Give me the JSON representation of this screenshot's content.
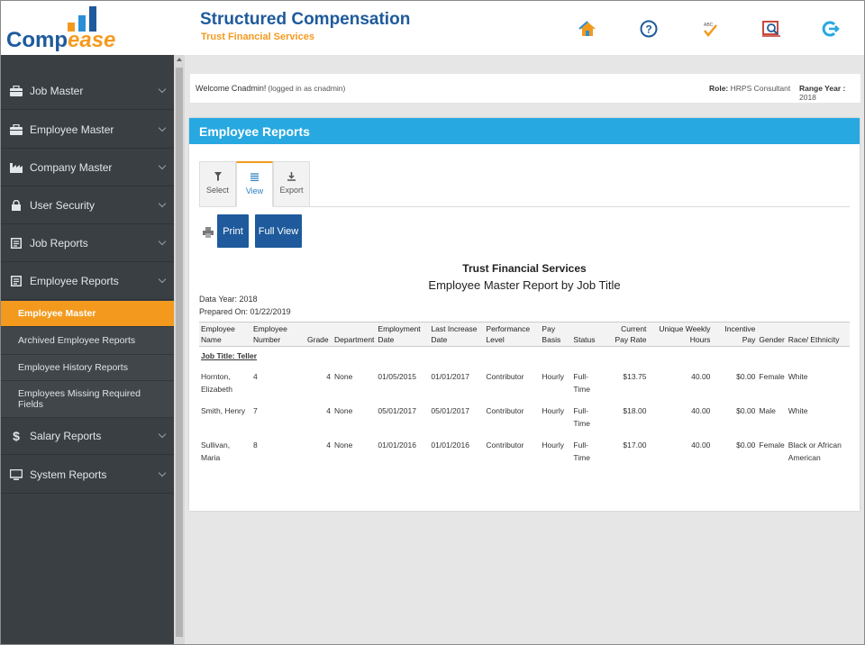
{
  "app": {
    "logo_part1": "Comp",
    "logo_part2": "ease",
    "title": "Structured Compensation",
    "company": "Trust Financial Services"
  },
  "header_icons": [
    "home-icon",
    "help-icon",
    "spellcheck-icon",
    "report-search-icon",
    "logout-icon"
  ],
  "sidebar": {
    "items": [
      {
        "label": "Job Master",
        "icon": "briefcase-icon"
      },
      {
        "label": "Employee Master",
        "icon": "briefcase-icon"
      },
      {
        "label": "Company Master",
        "icon": "factory-icon"
      },
      {
        "label": "User Security",
        "icon": "lock-icon"
      },
      {
        "label": "Job Reports",
        "icon": "report-icon"
      },
      {
        "label": "Employee Reports",
        "icon": "report-icon"
      },
      {
        "label": "Salary Reports",
        "icon": "dollar-icon"
      },
      {
        "label": "System Reports",
        "icon": "monitor-icon"
      }
    ],
    "sub_items": [
      {
        "label": "Employee Master",
        "active": true
      },
      {
        "label": "Archived Employee Reports"
      },
      {
        "label": "Employee History Reports"
      },
      {
        "label": "Employees Missing Required Fields"
      }
    ]
  },
  "welcome": {
    "text": "Welcome Cnadmin!",
    "logged_in": "(logged in as cnadmin)",
    "role_label": "Role:",
    "role_value": "HRPS Consultant",
    "range_label": "Range Year :",
    "range_value": "2018"
  },
  "panel": {
    "title": "Employee Reports",
    "tabs": [
      {
        "label": "Select",
        "icon": "filter-icon"
      },
      {
        "label": "View",
        "icon": "list-icon",
        "active": true
      },
      {
        "label": "Export",
        "icon": "download-icon"
      }
    ],
    "buttons": {
      "print": "Print",
      "full_view": "Full View"
    }
  },
  "report": {
    "company": "Trust Financial Services",
    "title": "Employee Master Report by Job Title",
    "data_year": "Data Year: 2018",
    "prepared_on": "Prepared On: 01/22/2019",
    "columns": [
      "Employee Name",
      "Employee Number",
      "Grade",
      "Department",
      "Employment Date",
      "Last Increase Date",
      "Performance Level",
      "Pay Basis",
      "Status",
      "Current Pay Rate",
      "Unique Weekly Hours",
      "Incentive Pay",
      "Gender",
      "Race/ Ethnicity"
    ],
    "group_label": "Job Title: Teller",
    "rows": [
      {
        "name": "Hornton, Elizabeth",
        "number": "4",
        "grade": "4",
        "department": "None",
        "employment_date": "01/05/2015",
        "last_increase": "01/01/2017",
        "performance": "Contributor",
        "pay_basis": "Hourly",
        "status": "Full-Time",
        "pay_rate": "$13.75",
        "weekly_hours": "40.00",
        "incentive": "$0.00",
        "gender": "Female",
        "race": "White"
      },
      {
        "name": "Smith, Henry",
        "number": "7",
        "grade": "4",
        "department": "None",
        "employment_date": "05/01/2017",
        "last_increase": "05/01/2017",
        "performance": "Contributor",
        "pay_basis": "Hourly",
        "status": "Full-Time",
        "pay_rate": "$18.00",
        "weekly_hours": "40.00",
        "incentive": "$0.00",
        "gender": "Male",
        "race": "White"
      },
      {
        "name": "Sullivan, Maria",
        "number": "8",
        "grade": "4",
        "department": "None",
        "employment_date": "01/01/2016",
        "last_increase": "01/01/2016",
        "performance": "Contributor",
        "pay_basis": "Hourly",
        "status": "Full-Time",
        "pay_rate": "$17.00",
        "weekly_hours": "40.00",
        "incentive": "$0.00",
        "gender": "Female",
        "race": "Black or African American"
      }
    ]
  },
  "colors": {
    "brand_blue": "#1e5a9c",
    "accent_orange": "#f39a1e",
    "panel_header": "#27a8e0",
    "sidebar_bg": "#3a3f44"
  }
}
